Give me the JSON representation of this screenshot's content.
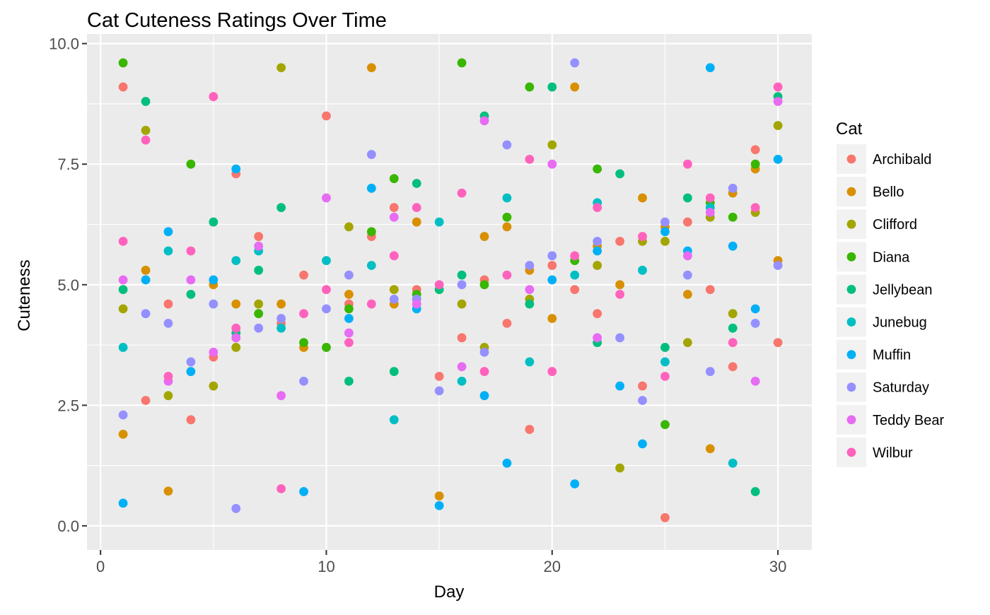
{
  "chart_data": {
    "type": "scatter",
    "title": "Cat Cuteness Ratings Over Time",
    "xlabel": "Day",
    "ylabel": "Cuteness",
    "xlim": [
      -0.6,
      31.5
    ],
    "ylim": [
      -0.5,
      10.2
    ],
    "x_ticks": [
      0,
      10,
      20,
      30
    ],
    "x_tick_labels": [
      "0",
      "10",
      "20",
      "30"
    ],
    "y_ticks": [
      0,
      2.5,
      5,
      7.5,
      10
    ],
    "y_tick_labels": [
      "0.0",
      "2.5",
      "5.0",
      "7.5",
      "10.0"
    ],
    "grid": true,
    "legend": {
      "title": "Cat",
      "position": "right"
    },
    "series": [
      {
        "name": "Archibald",
        "color": "#F8766D",
        "points": [
          [
            1,
            9.1
          ],
          [
            2,
            2.6
          ],
          [
            3,
            4.6
          ],
          [
            4,
            2.2
          ],
          [
            5,
            3.5
          ],
          [
            6,
            7.3
          ],
          [
            7,
            6.0
          ],
          [
            8,
            4.2
          ],
          [
            9,
            5.2
          ],
          [
            10,
            8.5
          ],
          [
            11,
            4.6
          ],
          [
            12,
            6.0
          ],
          [
            13,
            6.6
          ],
          [
            14,
            4.9
          ],
          [
            15,
            3.1
          ],
          [
            16,
            3.9
          ],
          [
            17,
            5.1
          ],
          [
            18,
            4.2
          ],
          [
            19,
            2.0
          ],
          [
            20,
            5.4
          ],
          [
            21,
            4.9
          ],
          [
            22,
            4.4
          ],
          [
            23,
            5.9
          ],
          [
            24,
            2.9
          ],
          [
            25,
            0.17
          ],
          [
            26,
            6.3
          ],
          [
            27,
            4.9
          ],
          [
            28,
            3.3
          ],
          [
            29,
            7.8
          ],
          [
            30,
            3.8
          ]
        ]
      },
      {
        "name": "Bello",
        "color": "#D89000",
        "points": [
          [
            1,
            1.9
          ],
          [
            2,
            5.3
          ],
          [
            3,
            0.72
          ],
          [
            5,
            5.0
          ],
          [
            6,
            4.6
          ],
          [
            8,
            4.6
          ],
          [
            9,
            3.7
          ],
          [
            11,
            4.8
          ],
          [
            12,
            9.5
          ],
          [
            13,
            4.6
          ],
          [
            14,
            6.3
          ],
          [
            15,
            0.62
          ],
          [
            17,
            6.0
          ],
          [
            18,
            6.2
          ],
          [
            19,
            5.3
          ],
          [
            20,
            4.3
          ],
          [
            21,
            9.1
          ],
          [
            22,
            5.8
          ],
          [
            23,
            5.0
          ],
          [
            24,
            6.8
          ],
          [
            25,
            6.2
          ],
          [
            26,
            4.8
          ],
          [
            27,
            1.6
          ],
          [
            28,
            6.9
          ],
          [
            29,
            7.4
          ],
          [
            30,
            5.5
          ]
        ]
      },
      {
        "name": "Clifford",
        "color": "#A3A500",
        "points": [
          [
            1,
            4.5
          ],
          [
            2,
            8.2
          ],
          [
            3,
            2.7
          ],
          [
            5,
            2.9
          ],
          [
            6,
            3.7
          ],
          [
            7,
            4.6
          ],
          [
            8,
            9.5
          ],
          [
            11,
            6.2
          ],
          [
            13,
            4.9
          ],
          [
            16,
            4.6
          ],
          [
            17,
            3.7
          ],
          [
            19,
            4.7
          ],
          [
            20,
            7.9
          ],
          [
            22,
            5.4
          ],
          [
            23,
            1.2
          ],
          [
            24,
            5.9
          ],
          [
            25,
            5.9
          ],
          [
            26,
            3.8
          ],
          [
            27,
            6.4
          ],
          [
            28,
            4.4
          ],
          [
            29,
            6.5
          ],
          [
            30,
            8.3
          ]
        ]
      },
      {
        "name": "Diana",
        "color": "#39B600",
        "points": [
          [
            1,
            9.6
          ],
          [
            4,
            7.5
          ],
          [
            7,
            4.4
          ],
          [
            9,
            3.8
          ],
          [
            10,
            3.7
          ],
          [
            11,
            4.5
          ],
          [
            12,
            6.1
          ],
          [
            13,
            7.2
          ],
          [
            14,
            4.8
          ],
          [
            16,
            9.6
          ],
          [
            17,
            5.0
          ],
          [
            18,
            6.4
          ],
          [
            19,
            9.1
          ],
          [
            21,
            5.5
          ],
          [
            22,
            7.4
          ],
          [
            25,
            2.1
          ],
          [
            27,
            6.7
          ],
          [
            28,
            6.4
          ],
          [
            29,
            7.5
          ]
        ]
      },
      {
        "name": "Jellybean",
        "color": "#00BF7D",
        "points": [
          [
            1,
            4.9
          ],
          [
            2,
            8.8
          ],
          [
            4,
            4.8
          ],
          [
            5,
            6.3
          ],
          [
            6,
            4.0
          ],
          [
            7,
            5.3
          ],
          [
            8,
            6.6
          ],
          [
            11,
            3.0
          ],
          [
            13,
            3.2
          ],
          [
            14,
            7.1
          ],
          [
            15,
            4.9
          ],
          [
            16,
            5.2
          ],
          [
            17,
            8.5
          ],
          [
            19,
            4.6
          ],
          [
            20,
            9.1
          ],
          [
            22,
            3.8
          ],
          [
            23,
            7.3
          ],
          [
            25,
            3.7
          ],
          [
            26,
            6.8
          ],
          [
            28,
            4.1
          ],
          [
            29,
            0.71
          ],
          [
            30,
            8.9
          ]
        ]
      },
      {
        "name": "Junebug",
        "color": "#00BFC4",
        "points": [
          [
            1,
            3.7
          ],
          [
            3,
            5.7
          ],
          [
            6,
            5.5
          ],
          [
            7,
            5.7
          ],
          [
            8,
            4.1
          ],
          [
            10,
            5.5
          ],
          [
            12,
            5.4
          ],
          [
            13,
            2.2
          ],
          [
            14,
            4.7
          ],
          [
            15,
            6.3
          ],
          [
            16,
            3.0
          ],
          [
            18,
            6.8
          ],
          [
            19,
            3.4
          ],
          [
            21,
            5.2
          ],
          [
            22,
            6.7
          ],
          [
            24,
            5.3
          ],
          [
            25,
            3.4
          ],
          [
            27,
            6.6
          ],
          [
            28,
            1.3
          ]
        ]
      },
      {
        "name": "Muffin",
        "color": "#00B0F6",
        "points": [
          [
            1,
            0.47
          ],
          [
            2,
            5.1
          ],
          [
            3,
            6.1
          ],
          [
            4,
            3.2
          ],
          [
            5,
            5.1
          ],
          [
            6,
            7.4
          ],
          [
            9,
            0.71
          ],
          [
            11,
            4.3
          ],
          [
            12,
            7.0
          ],
          [
            14,
            4.5
          ],
          [
            15,
            0.42
          ],
          [
            17,
            2.7
          ],
          [
            18,
            1.3
          ],
          [
            20,
            5.1
          ],
          [
            21,
            0.87
          ],
          [
            22,
            5.7
          ],
          [
            23,
            2.9
          ],
          [
            24,
            1.7
          ],
          [
            25,
            6.1
          ],
          [
            26,
            5.7
          ],
          [
            27,
            9.5
          ],
          [
            28,
            5.8
          ],
          [
            29,
            4.5
          ],
          [
            30,
            7.6
          ]
        ]
      },
      {
        "name": "Saturday",
        "color": "#9590FF",
        "points": [
          [
            1,
            2.3
          ],
          [
            2,
            4.4
          ],
          [
            3,
            4.2
          ],
          [
            4,
            3.4
          ],
          [
            5,
            4.6
          ],
          [
            6,
            0.36
          ],
          [
            7,
            4.1
          ],
          [
            8,
            4.3
          ],
          [
            9,
            3.0
          ],
          [
            10,
            4.5
          ],
          [
            11,
            5.2
          ],
          [
            12,
            7.7
          ],
          [
            13,
            4.7
          ],
          [
            14,
            4.7
          ],
          [
            15,
            2.8
          ],
          [
            16,
            5.0
          ],
          [
            17,
            3.6
          ],
          [
            18,
            7.9
          ],
          [
            19,
            5.4
          ],
          [
            20,
            5.6
          ],
          [
            21,
            9.6
          ],
          [
            22,
            5.9
          ],
          [
            23,
            3.9
          ],
          [
            24,
            2.6
          ],
          [
            25,
            6.3
          ],
          [
            26,
            5.2
          ],
          [
            27,
            3.2
          ],
          [
            28,
            7.0
          ],
          [
            29,
            4.2
          ],
          [
            30,
            5.4
          ]
        ]
      },
      {
        "name": "Teddy Bear",
        "color": "#E76BF3",
        "points": [
          [
            1,
            5.1
          ],
          [
            3,
            3.0
          ],
          [
            4,
            5.1
          ],
          [
            5,
            3.6
          ],
          [
            6,
            3.9
          ],
          [
            7,
            5.8
          ],
          [
            8,
            2.7
          ],
          [
            10,
            6.8
          ],
          [
            11,
            4.0
          ],
          [
            13,
            6.4
          ],
          [
            14,
            4.6
          ],
          [
            16,
            3.3
          ],
          [
            17,
            8.4
          ],
          [
            19,
            4.9
          ],
          [
            20,
            7.5
          ],
          [
            22,
            3.9
          ],
          [
            26,
            5.6
          ],
          [
            27,
            6.5
          ],
          [
            29,
            3.0
          ],
          [
            30,
            8.8
          ]
        ]
      },
      {
        "name": "Wilbur",
        "color": "#FF62BC",
        "points": [
          [
            1,
            5.9
          ],
          [
            2,
            8.0
          ],
          [
            3,
            3.1
          ],
          [
            4,
            5.7
          ],
          [
            5,
            8.9
          ],
          [
            6,
            4.1
          ],
          [
            8,
            0.77
          ],
          [
            9,
            4.4
          ],
          [
            10,
            4.9
          ],
          [
            11,
            3.8
          ],
          [
            12,
            4.6
          ],
          [
            13,
            5.6
          ],
          [
            14,
            6.6
          ],
          [
            15,
            5.0
          ],
          [
            16,
            6.9
          ],
          [
            17,
            3.2
          ],
          [
            18,
            5.2
          ],
          [
            19,
            7.6
          ],
          [
            20,
            3.2
          ],
          [
            21,
            5.6
          ],
          [
            22,
            6.6
          ],
          [
            23,
            4.8
          ],
          [
            24,
            6.0
          ],
          [
            25,
            3.1
          ],
          [
            26,
            7.5
          ],
          [
            27,
            6.8
          ],
          [
            28,
            3.8
          ],
          [
            29,
            6.6
          ],
          [
            30,
            9.1
          ]
        ]
      }
    ]
  }
}
